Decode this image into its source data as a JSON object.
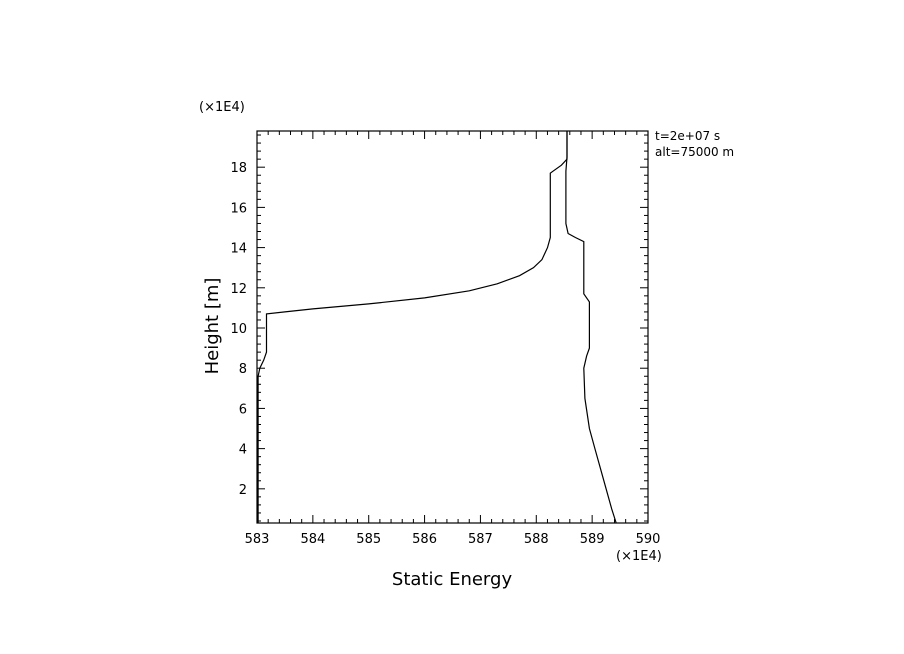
{
  "chart_data": {
    "type": "line",
    "title": "",
    "xlabel": "Static Energy",
    "ylabel": "Height [m]",
    "x_scale_label": "(×1E4)",
    "y_scale_label": "(×1E4)",
    "annotations": [
      "t=2e+07 s",
      "alt=75000 m"
    ],
    "xlim": [
      583,
      590
    ],
    "ylim": [
      0.3,
      19.8
    ],
    "x_ticks": [
      583,
      584,
      585,
      586,
      587,
      588,
      589,
      590
    ],
    "y_ticks": [
      2,
      4,
      6,
      8,
      10,
      12,
      14,
      16,
      18
    ],
    "x_tick_labels": [
      "583",
      "584",
      "585",
      "586",
      "587",
      "588",
      "589",
      "590"
    ],
    "y_tick_labels": [
      "2",
      "4",
      "6",
      "8",
      "10",
      "12",
      "14",
      "16",
      "18"
    ],
    "grid": false,
    "legend": "none",
    "series": [
      {
        "points": [
          [
            583.02,
            0.3
          ],
          [
            583.02,
            7.6
          ],
          [
            583.05,
            8.0
          ],
          [
            583.12,
            8.4
          ],
          [
            583.17,
            8.8
          ],
          [
            583.17,
            10.7
          ],
          [
            583.5,
            10.8
          ],
          [
            584.0,
            10.95
          ],
          [
            585.0,
            11.2
          ],
          [
            586.0,
            11.5
          ],
          [
            586.8,
            11.85
          ],
          [
            587.3,
            12.2
          ],
          [
            587.7,
            12.6
          ],
          [
            587.95,
            13.0
          ],
          [
            588.1,
            13.4
          ],
          [
            588.2,
            14.0
          ],
          [
            588.25,
            14.5
          ],
          [
            588.25,
            17.7
          ],
          [
            588.3,
            17.8
          ],
          [
            588.45,
            18.1
          ],
          [
            588.55,
            18.4
          ],
          [
            588.55,
            19.8
          ]
        ]
      },
      {
        "points": [
          [
            588.55,
            19.8
          ],
          [
            588.55,
            18.5
          ],
          [
            588.53,
            17.8
          ],
          [
            588.53,
            15.2
          ],
          [
            588.57,
            14.7
          ],
          [
            588.7,
            14.5
          ],
          [
            588.85,
            14.3
          ],
          [
            588.85,
            11.7
          ],
          [
            588.95,
            11.3
          ],
          [
            588.95,
            9.0
          ],
          [
            588.9,
            8.6
          ],
          [
            588.85,
            8.0
          ],
          [
            588.87,
            6.5
          ],
          [
            588.95,
            5.0
          ],
          [
            589.05,
            4.0
          ],
          [
            589.15,
            3.0
          ],
          [
            589.25,
            2.0
          ],
          [
            589.35,
            1.0
          ],
          [
            589.43,
            0.3
          ]
        ]
      }
    ]
  }
}
